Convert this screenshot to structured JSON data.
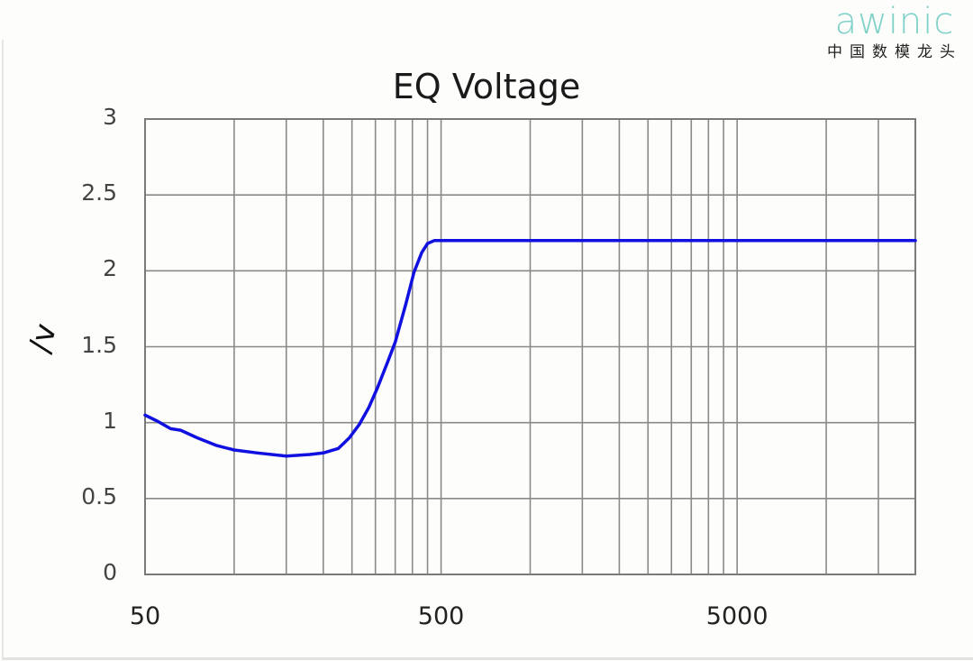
{
  "logo": {
    "brand": "awinic",
    "tagline": "中国数模龙头"
  },
  "chart_data": {
    "type": "line",
    "title": "EQ Voltage",
    "xlabel": "",
    "ylabel": "/v",
    "xscale": "log",
    "xlim": [
      50,
      20000
    ],
    "ylim": [
      0,
      3
    ],
    "grid": true,
    "x_tick_labels": [
      "50",
      "500",
      "5000"
    ],
    "y_tick_labels": [
      "0",
      "0.5",
      "1",
      "1.5",
      "2",
      "2.5",
      "3"
    ],
    "series": [
      {
        "name": "EQ Voltage",
        "color": "#1010e0",
        "x": [
          50,
          55,
          61,
          66,
          75,
          87,
          100,
          120,
          150,
          180,
          200,
          225,
          245,
          265,
          285,
          305,
          330,
          350,
          380,
          405,
          430,
          450,
          475,
          500,
          1000,
          5000,
          20000
        ],
        "y": [
          1.05,
          1.01,
          0.96,
          0.95,
          0.9,
          0.85,
          0.82,
          0.8,
          0.78,
          0.79,
          0.8,
          0.83,
          0.9,
          0.99,
          1.1,
          1.23,
          1.4,
          1.53,
          1.78,
          1.99,
          2.12,
          2.18,
          2.2,
          2.2,
          2.2,
          2.2,
          2.2
        ]
      }
    ],
    "legend": null
  }
}
